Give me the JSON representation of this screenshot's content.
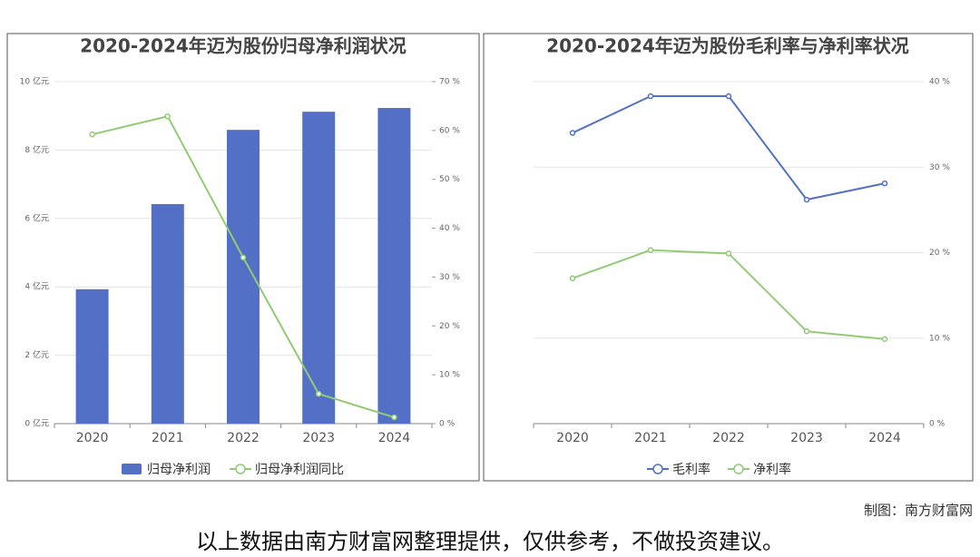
{
  "chart_data": [
    {
      "type": "combo",
      "title": "2020-2024年迈为股份归母净利润状况",
      "categories": [
        "2020",
        "2021",
        "2022",
        "2023",
        "2024"
      ],
      "series": [
        {
          "name": "归母净利润",
          "kind": "bar",
          "color": "#5470c6",
          "values": [
            3.93,
            6.42,
            8.59,
            9.12,
            9.23
          ]
        },
        {
          "name": "归母净利润同比",
          "kind": "line",
          "axis": "y2",
          "color": "#91cc75",
          "values": [
            59.2,
            62.9,
            34.0,
            6.1,
            1.3
          ]
        }
      ],
      "ylim": [
        0,
        10
      ],
      "yticks": [
        {
          "value": 0,
          "label": "0 亿元"
        },
        {
          "value": 2,
          "label": "2 亿元"
        },
        {
          "value": 4,
          "label": "4 亿元"
        },
        {
          "value": 6,
          "label": "6 亿元"
        },
        {
          "value": 8,
          "label": "8 亿元"
        },
        {
          "value": 10,
          "label": "10 亿元"
        }
      ],
      "y2lim": [
        0,
        70
      ],
      "y2ticks": [
        {
          "value": 0,
          "label": "0 %"
        },
        {
          "value": 10,
          "label": "10 %"
        },
        {
          "value": 20,
          "label": "20 %"
        },
        {
          "value": 30,
          "label": "30 %"
        },
        {
          "value": 40,
          "label": "40 %"
        },
        {
          "value": 50,
          "label": "50 %"
        },
        {
          "value": 60,
          "label": "60 %"
        },
        {
          "value": 70,
          "label": "70 %"
        }
      ],
      "grid": true
    },
    {
      "type": "line",
      "title": "2020-2024年迈为股份毛利率与净利率状况",
      "categories": [
        "2020",
        "2021",
        "2022",
        "2023",
        "2024"
      ],
      "series": [
        {
          "name": "毛利率",
          "color": "#5470c6",
          "values": [
            34.0,
            38.3,
            38.3,
            26.2,
            28.1
          ]
        },
        {
          "name": "净利率",
          "color": "#91cc75",
          "values": [
            17.0,
            20.3,
            19.9,
            10.8,
            9.9
          ]
        }
      ],
      "ylim": [
        0,
        40
      ],
      "yticks": [
        {
          "value": 0,
          "label": "0 %"
        },
        {
          "value": 10,
          "label": "10 %"
        },
        {
          "value": 20,
          "label": "20 %"
        },
        {
          "value": 30,
          "label": "30 %"
        },
        {
          "value": 40,
          "label": "40 %"
        }
      ],
      "yaxis_side": "right",
      "grid": true
    }
  ],
  "credit": "制图：南方财富网",
  "disclaimer": "以上数据由南方财富网整理提供，仅供参考，不做投资建议。"
}
